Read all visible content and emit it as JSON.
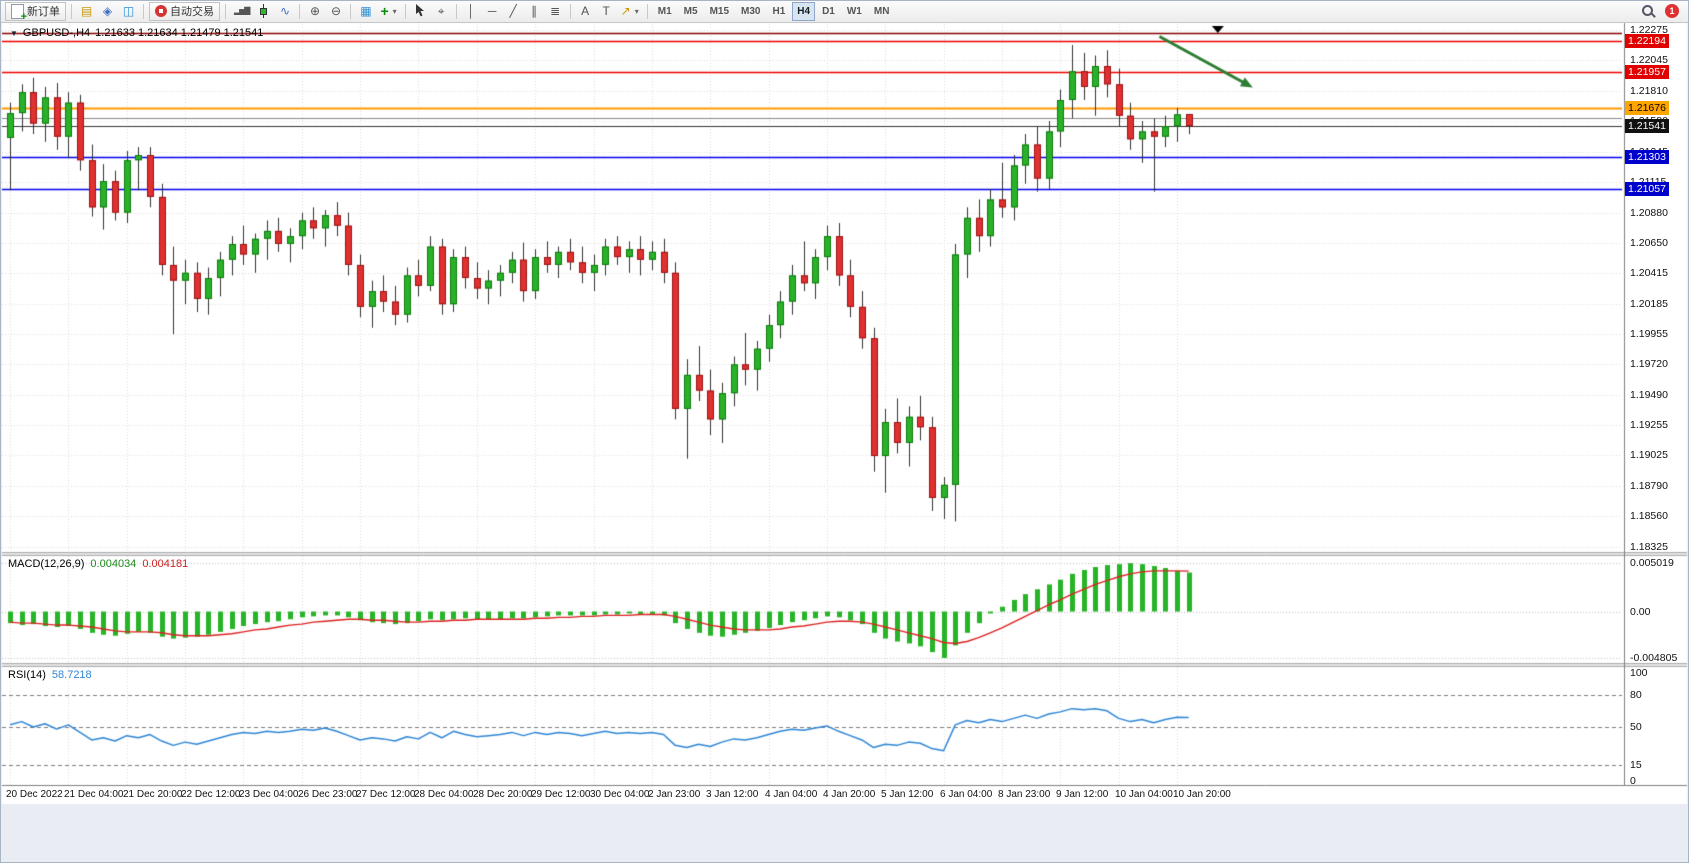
{
  "toolbar": {
    "new_order_label": "新订单",
    "autotrading_label": "自动交易",
    "timeframes": [
      "M1",
      "M5",
      "M15",
      "M30",
      "H1",
      "H4",
      "D1",
      "W1",
      "MN"
    ],
    "active_timeframe": "H4",
    "notification_count": "1",
    "icons": {
      "new_order_plus": "+",
      "market_watch": "▤",
      "navigator": "◈",
      "terminal": "◫",
      "bar_chart": "▂▅▇",
      "line_chart": "∿",
      "zoom_in": "⊕",
      "zoom_out": "⊖",
      "tile_windows": "▦",
      "indicators": "+",
      "crosshair": "⌖",
      "vertical_line": "│",
      "horizontal_line": "─",
      "trendline": "╱",
      "channel": "∥",
      "fibonacci": "≣",
      "text": "A",
      "text_label": "T",
      "arrows": "↗",
      "dropdown_caret": "▾"
    }
  },
  "chart_header": {
    "collapse_icon": "▼",
    "symbol": "GBPUSD-,H4",
    "ohlc": "1.21633 1.21634 1.21479 1.21541"
  },
  "indicators": {
    "macd_label": "MACD(12,26,9)",
    "macd_main": "0.004034",
    "macd_signal": "0.004181",
    "rsi_label": "RSI(14)",
    "rsi_value": "58.7218"
  },
  "chart_data": {
    "type": "candlestick",
    "symbol": "GBPUSD-",
    "timeframe": "H4",
    "price_range": {
      "top": 1.22275,
      "bottom": 1.18325
    },
    "price_axis_labels": [
      "1.22275",
      "1.22045",
      "1.21810",
      "1.21580",
      "1.21345",
      "1.21115",
      "1.20880",
      "1.20650",
      "1.20415",
      "1.20185",
      "1.19955",
      "1.19720",
      "1.19490",
      "1.19255",
      "1.19025",
      "1.18790",
      "1.18560",
      "1.18325"
    ],
    "time_labels": [
      "20 Dec 2022",
      "21 Dec 04:00",
      "21 Dec 20:00",
      "22 Dec 12:00",
      "23 Dec 04:00",
      "26 Dec 23:00",
      "27 Dec 12:00",
      "28 Dec 04:00",
      "28 Dec 20:00",
      "29 Dec 12:00",
      "30 Dec 04:00",
      "2 Jan 23:00",
      "3 Jan 12:00",
      "4 Jan 04:00",
      "4 Jan 20:00",
      "5 Jan 12:00",
      "6 Jan 04:00",
      "8 Jan 23:00",
      "9 Jan 12:00",
      "10 Jan 04:00",
      "10 Jan 20:00"
    ],
    "bull_color": "#29b229",
    "bear_color": "#e03030",
    "bull_border": "#0e7a0e",
    "bear_border": "#9b1313",
    "wick_color": "#333333",
    "current_price": "1.21541",
    "levels": [
      {
        "price": 1.22255,
        "color": "#8b0000",
        "width": 1.5,
        "tag": false
      },
      {
        "price": 1.22194,
        "color": "#ee0000",
        "width": 1.5,
        "tag": true,
        "label": "1.22194",
        "bg": "#e00000",
        "fg": "#ffffff"
      },
      {
        "price": 1.21957,
        "color": "#ee0000",
        "width": 1.5,
        "tag": true,
        "label": "1.21957",
        "bg": "#e00000",
        "fg": "#ffffff"
      },
      {
        "price": 1.21676,
        "color": "#ff9900",
        "width": 2,
        "tag": true,
        "label": "1.21676",
        "bg": "#ffa500",
        "fg": "#000000"
      },
      {
        "price": 1.21603,
        "color": "#8a8a8a",
        "width": 1,
        "tag": false
      },
      {
        "price": 1.21541,
        "color": "#333333",
        "width": 1,
        "tag": true,
        "label": "1.21541",
        "bg": "#111111",
        "fg": "#ffffff"
      },
      {
        "price": 1.21303,
        "color": "#0000ee",
        "width": 1.5,
        "tag": true,
        "label": "1.21303",
        "bg": "#0000cc",
        "fg": "#ffffff"
      },
      {
        "price": 1.21057,
        "color": "#0000ee",
        "width": 1.5,
        "tag": true,
        "label": "1.21057",
        "bg": "#0000cc",
        "fg": "#ffffff"
      }
    ],
    "annotations": [
      {
        "type": "arrow",
        "from_bar": 98.5,
        "from_price": 1.22225,
        "to_bar": 106.5,
        "to_price": 1.21835,
        "color": "#2e7d32"
      }
    ],
    "shift_marker_bar": 103.5,
    "candles": [
      [
        1.2145,
        1.2172,
        1.2105,
        1.2164
      ],
      [
        1.2164,
        1.2186,
        1.215,
        1.218
      ],
      [
        1.218,
        1.2191,
        1.2148,
        1.2156
      ],
      [
        1.2156,
        1.2184,
        1.2142,
        1.2176
      ],
      [
        1.2176,
        1.2187,
        1.2136,
        1.2146
      ],
      [
        1.2146,
        1.218,
        1.213,
        1.2172
      ],
      [
        1.2172,
        1.2178,
        1.212,
        1.2128
      ],
      [
        1.2128,
        1.214,
        1.2085,
        1.2092
      ],
      [
        1.2092,
        1.2125,
        1.2075,
        1.2112
      ],
      [
        1.2112,
        1.212,
        1.2082,
        1.2088
      ],
      [
        1.2088,
        1.2135,
        1.208,
        1.2128
      ],
      [
        1.2128,
        1.2138,
        1.2105,
        1.2132
      ],
      [
        1.2132,
        1.2138,
        1.2092,
        1.21
      ],
      [
        1.21,
        1.211,
        1.204,
        1.2048
      ],
      [
        1.2048,
        1.2062,
        1.1995,
        1.2036
      ],
      [
        1.2036,
        1.2052,
        1.2018,
        1.2042
      ],
      [
        1.2042,
        1.205,
        1.2012,
        1.2022
      ],
      [
        1.2022,
        1.2046,
        1.201,
        1.2038
      ],
      [
        1.2038,
        1.2058,
        1.2024,
        1.2052
      ],
      [
        1.2052,
        1.207,
        1.204,
        1.2064
      ],
      [
        1.2064,
        1.2078,
        1.2048,
        1.2056
      ],
      [
        1.2056,
        1.2072,
        1.2042,
        1.2068
      ],
      [
        1.2068,
        1.2082,
        1.2052,
        1.2074
      ],
      [
        1.2074,
        1.2084,
        1.2058,
        1.2064
      ],
      [
        1.2064,
        1.2076,
        1.205,
        1.207
      ],
      [
        1.207,
        1.2088,
        1.206,
        1.2082
      ],
      [
        1.2082,
        1.2092,
        1.2068,
        1.2076
      ],
      [
        1.2076,
        1.209,
        1.2062,
        1.2086
      ],
      [
        1.2086,
        1.2096,
        1.207,
        1.2078
      ],
      [
        1.2078,
        1.2088,
        1.204,
        1.2048
      ],
      [
        1.2048,
        1.2056,
        1.2008,
        1.2016
      ],
      [
        1.2016,
        1.2036,
        1.2,
        1.2028
      ],
      [
        1.2028,
        1.204,
        1.2012,
        1.202
      ],
      [
        1.202,
        1.2032,
        1.2002,
        1.201
      ],
      [
        1.201,
        1.2046,
        1.2004,
        1.204
      ],
      [
        1.204,
        1.2052,
        1.2024,
        1.2032
      ],
      [
        1.2032,
        1.207,
        1.2028,
        1.2062
      ],
      [
        1.2062,
        1.2068,
        1.201,
        1.2018
      ],
      [
        1.2018,
        1.206,
        1.2012,
        1.2054
      ],
      [
        1.2054,
        1.2062,
        1.203,
        1.2038
      ],
      [
        1.2038,
        1.205,
        1.2022,
        1.203
      ],
      [
        1.203,
        1.2044,
        1.2018,
        1.2036
      ],
      [
        1.2036,
        1.2048,
        1.2024,
        1.2042
      ],
      [
        1.2042,
        1.2058,
        1.2034,
        1.2052
      ],
      [
        1.2052,
        1.2065,
        1.202,
        1.2028
      ],
      [
        1.2028,
        1.206,
        1.2022,
        1.2054
      ],
      [
        1.2054,
        1.2066,
        1.2042,
        1.2048
      ],
      [
        1.2048,
        1.2062,
        1.2038,
        1.2058
      ],
      [
        1.2058,
        1.2068,
        1.2044,
        1.205
      ],
      [
        1.205,
        1.2062,
        1.2034,
        1.2042
      ],
      [
        1.2042,
        1.2056,
        1.2028,
        1.2048
      ],
      [
        1.2048,
        1.2068,
        1.204,
        1.2062
      ],
      [
        1.2062,
        1.207,
        1.2048,
        1.2054
      ],
      [
        1.2054,
        1.2066,
        1.2042,
        1.206
      ],
      [
        1.206,
        1.207,
        1.204,
        1.2052
      ],
      [
        1.2052,
        1.2066,
        1.2044,
        1.2058
      ],
      [
        1.2058,
        1.2068,
        1.2034,
        1.2042
      ],
      [
        1.2042,
        1.205,
        1.193,
        1.1938
      ],
      [
        1.1938,
        1.1976,
        1.19,
        1.1964
      ],
      [
        1.1964,
        1.1986,
        1.1944,
        1.1952
      ],
      [
        1.1952,
        1.1968,
        1.1918,
        1.193
      ],
      [
        1.193,
        1.1958,
        1.1912,
        1.195
      ],
      [
        1.195,
        1.1978,
        1.194,
        1.1972
      ],
      [
        1.1972,
        1.1996,
        1.1956,
        1.1968
      ],
      [
        1.1968,
        1.199,
        1.1952,
        1.1984
      ],
      [
        1.1984,
        1.201,
        1.1974,
        1.2002
      ],
      [
        1.2002,
        1.2028,
        1.1992,
        1.202
      ],
      [
        1.202,
        1.2048,
        1.201,
        1.204
      ],
      [
        1.204,
        1.2066,
        1.2028,
        1.2034
      ],
      [
        1.2034,
        1.206,
        1.2022,
        1.2054
      ],
      [
        1.2054,
        1.2078,
        1.2044,
        1.207
      ],
      [
        1.207,
        1.208,
        1.2032,
        1.204
      ],
      [
        1.204,
        1.2052,
        1.2008,
        1.2016
      ],
      [
        1.2016,
        1.2028,
        1.1984,
        1.1992
      ],
      [
        1.1992,
        1.2,
        1.189,
        1.1902
      ],
      [
        1.1902,
        1.1938,
        1.1874,
        1.1928
      ],
      [
        1.1928,
        1.1946,
        1.1904,
        1.1912
      ],
      [
        1.1912,
        1.194,
        1.1894,
        1.1932
      ],
      [
        1.1932,
        1.1948,
        1.1914,
        1.1924
      ],
      [
        1.1924,
        1.1932,
        1.186,
        1.187
      ],
      [
        1.187,
        1.1886,
        1.1854,
        1.188
      ],
      [
        1.188,
        1.2064,
        1.1852,
        1.2056
      ],
      [
        1.2056,
        1.2092,
        1.2038,
        1.2084
      ],
      [
        1.2084,
        1.2098,
        1.2058,
        1.207
      ],
      [
        1.207,
        1.2106,
        1.2062,
        1.2098
      ],
      [
        1.2098,
        1.2126,
        1.2084,
        1.2092
      ],
      [
        1.2092,
        1.2132,
        1.2082,
        1.2124
      ],
      [
        1.2124,
        1.2148,
        1.211,
        1.214
      ],
      [
        1.214,
        1.2154,
        1.2104,
        1.2114
      ],
      [
        1.2114,
        1.2158,
        1.2106,
        1.215
      ],
      [
        1.215,
        1.2182,
        1.2138,
        1.2174
      ],
      [
        1.2174,
        1.2216,
        1.216,
        1.2196
      ],
      [
        1.2196,
        1.221,
        1.2174,
        1.2184
      ],
      [
        1.2184,
        1.2208,
        1.2162,
        1.22
      ],
      [
        1.22,
        1.2212,
        1.2176,
        1.2186
      ],
      [
        1.2186,
        1.2198,
        1.2154,
        1.2162
      ],
      [
        1.2162,
        1.2172,
        1.2136,
        1.2144
      ],
      [
        1.2144,
        1.2158,
        1.2126,
        1.215
      ],
      [
        1.215,
        1.216,
        1.2104,
        1.2146
      ],
      [
        1.2146,
        1.2162,
        1.2138,
        1.2154
      ],
      [
        1.2154,
        1.2168,
        1.2142,
        1.2163
      ],
      [
        1.21633,
        1.21634,
        1.21479,
        1.21541
      ]
    ],
    "macd": {
      "label": "MACD(12,26,9)",
      "params": [
        12,
        26,
        9
      ],
      "max": 0.005019,
      "min": -0.004805,
      "scale_labels": [
        "0.005019",
        "0.00",
        "-0.004805"
      ],
      "histogram_color": "#28b428",
      "signal_color": "#dd2222",
      "main": [
        -0.0012,
        -0.0014,
        -0.0013,
        -0.0015,
        -0.0016,
        -0.0015,
        -0.0018,
        -0.0022,
        -0.0024,
        -0.0025,
        -0.0023,
        -0.0021,
        -0.0022,
        -0.0026,
        -0.0028,
        -0.0027,
        -0.0026,
        -0.0024,
        -0.0021,
        -0.0018,
        -0.0015,
        -0.0013,
        -0.0011,
        -0.001,
        -0.0008,
        -0.0006,
        -0.0005,
        -0.0004,
        -0.0004,
        -0.0006,
        -0.0009,
        -0.0011,
        -0.0012,
        -0.0013,
        -0.0012,
        -0.001,
        -0.0008,
        -0.0009,
        -0.0008,
        -0.0007,
        -0.0008,
        -0.0008,
        -0.0008,
        -0.0007,
        -0.0007,
        -0.0006,
        -0.0005,
        -0.0004,
        -0.0004,
        -0.0004,
        -0.0004,
        -0.0003,
        -0.0003,
        -0.0002,
        -0.0003,
        -0.0003,
        -0.0004,
        -0.0012,
        -0.0018,
        -0.0022,
        -0.0025,
        -0.0026,
        -0.0024,
        -0.0022,
        -0.002,
        -0.0017,
        -0.0014,
        -0.0011,
        -0.0009,
        -0.0007,
        -0.0005,
        -0.0006,
        -0.0009,
        -0.0013,
        -0.0022,
        -0.0028,
        -0.0031,
        -0.0033,
        -0.0036,
        -0.0042,
        -0.0048,
        -0.0035,
        -0.0022,
        -0.0012,
        -0.0002,
        0.0005,
        0.0012,
        0.0018,
        0.0023,
        0.0028,
        0.0033,
        0.0039,
        0.0043,
        0.0046,
        0.0048,
        0.0049,
        0.005,
        0.0049,
        0.0047,
        0.0045,
        0.0042,
        0.004034
      ],
      "signal": [
        -0.0011,
        -0.0012,
        -0.0012,
        -0.0013,
        -0.0014,
        -0.0014,
        -0.0015,
        -0.0016,
        -0.0018,
        -0.002,
        -0.0021,
        -0.0021,
        -0.0021,
        -0.0022,
        -0.0024,
        -0.0025,
        -0.0025,
        -0.0025,
        -0.0024,
        -0.0023,
        -0.0021,
        -0.0019,
        -0.0018,
        -0.0016,
        -0.0014,
        -0.0013,
        -0.0011,
        -0.001,
        -0.0009,
        -0.0008,
        -0.0008,
        -0.0009,
        -0.0009,
        -0.001,
        -0.0011,
        -0.0011,
        -0.001,
        -0.001,
        -0.0009,
        -0.0009,
        -0.0008,
        -0.0008,
        -0.0008,
        -0.0008,
        -0.0008,
        -0.0007,
        -0.0007,
        -0.0006,
        -0.0006,
        -0.0005,
        -0.0005,
        -0.0004,
        -0.0004,
        -0.0004,
        -0.0003,
        -0.0003,
        -0.0003,
        -0.0005,
        -0.0008,
        -0.0011,
        -0.0014,
        -0.0016,
        -0.0018,
        -0.0019,
        -0.0019,
        -0.0019,
        -0.0018,
        -0.0016,
        -0.0015,
        -0.0013,
        -0.0011,
        -0.001,
        -0.001,
        -0.0011,
        -0.0013,
        -0.0016,
        -0.0019,
        -0.0022,
        -0.0025,
        -0.0028,
        -0.0032,
        -0.0033,
        -0.0031,
        -0.0027,
        -0.0022,
        -0.0017,
        -0.0011,
        -0.0005,
        0.0001,
        0.0007,
        0.0012,
        0.0018,
        0.0023,
        0.0028,
        0.0032,
        0.0036,
        0.0039,
        0.0041,
        0.0042,
        0.0042,
        0.0042,
        0.004181
      ]
    },
    "rsi": {
      "label": "RSI(14)",
      "period": 14,
      "line_color": "#2f86d6",
      "scale_labels": [
        "100",
        "80",
        "50",
        "15",
        "0"
      ],
      "levels": [
        80,
        50,
        15
      ],
      "values": [
        52,
        55,
        50,
        53,
        48,
        52,
        45,
        38,
        40,
        37,
        42,
        40,
        43,
        37,
        33,
        36,
        34,
        37,
        40,
        43,
        45,
        44,
        46,
        45,
        46,
        48,
        47,
        49,
        46,
        42,
        38,
        40,
        39,
        37,
        41,
        39,
        45,
        40,
        46,
        43,
        41,
        42,
        43,
        45,
        42,
        45,
        43,
        45,
        44,
        42,
        44,
        46,
        44,
        45,
        44,
        45,
        43,
        33,
        31,
        34,
        32,
        36,
        39,
        38,
        40,
        43,
        46,
        48,
        47,
        49,
        51,
        46,
        42,
        38,
        31,
        34,
        33,
        36,
        35,
        30,
        28,
        52,
        56,
        54,
        57,
        55,
        58,
        61,
        58,
        62,
        64,
        67,
        66,
        67,
        65,
        58,
        55,
        57,
        54,
        57,
        59,
        58.72
      ]
    }
  }
}
